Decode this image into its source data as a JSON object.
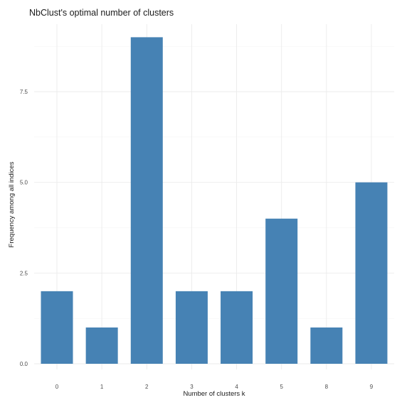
{
  "chart_data": {
    "type": "bar",
    "title": "NbClust's optimal number of clusters",
    "xlabel": "Number of clusters k",
    "ylabel": "Frequency among all indices",
    "categories": [
      "0",
      "1",
      "2",
      "3",
      "4",
      "5",
      "8",
      "9"
    ],
    "values": [
      2,
      1,
      9,
      2,
      2,
      4,
      1,
      5
    ],
    "ylim": [
      0,
      9.45
    ],
    "yticks": [
      0,
      2.5,
      5,
      7.5
    ],
    "ytick_labels": [
      "0.0",
      "2.5",
      "5.0",
      "7.5"
    ],
    "bar_color": "#4682b4",
    "grid": true,
    "legend": "none"
  }
}
